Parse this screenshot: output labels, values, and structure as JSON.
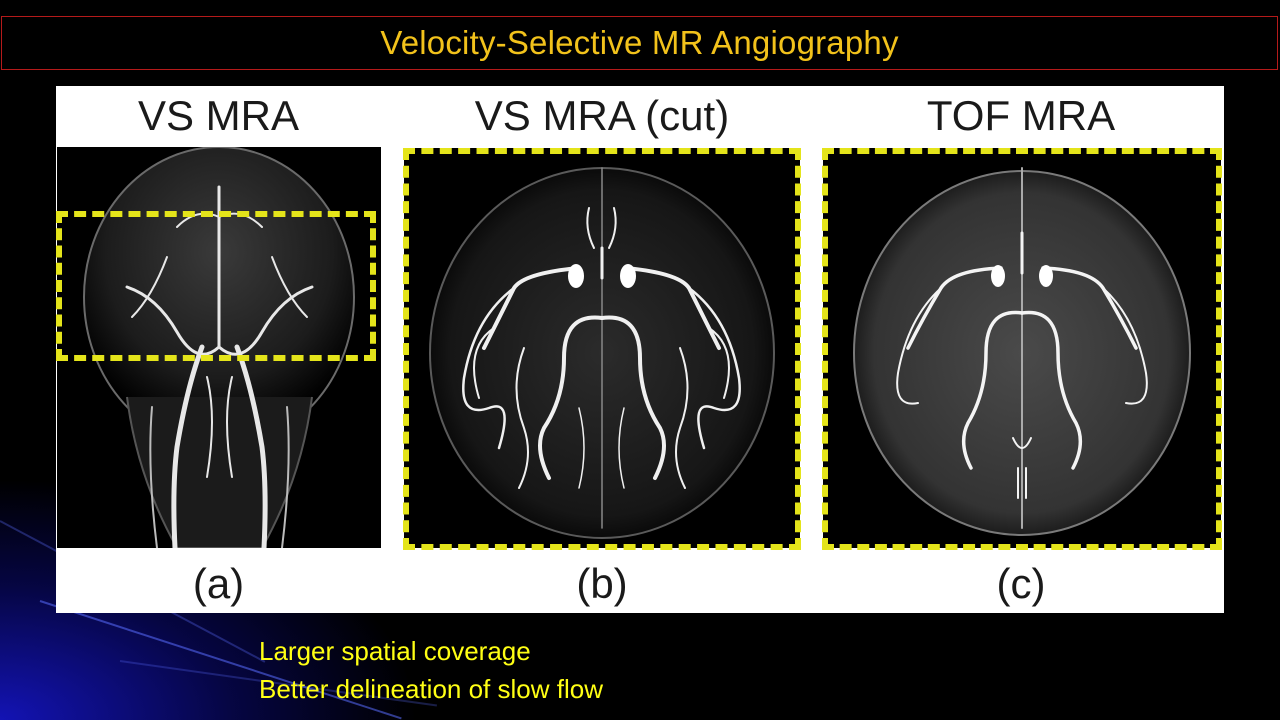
{
  "slide": {
    "title": "Velocity-Selective MR Angiography"
  },
  "figure": {
    "panels": [
      {
        "heading": "VS MRA",
        "label": "(a)"
      },
      {
        "heading": "VS MRA (cut)",
        "label": "(b)"
      },
      {
        "heading": "TOF MRA",
        "label": "(c)"
      }
    ]
  },
  "bullets": [
    "Larger spatial coverage",
    "Better delineation of slow flow"
  ],
  "colors": {
    "title": "#f2c21b",
    "title_border": "#b51a1a",
    "bullet_text": "#ffff14",
    "dashed_box": "#e4e41a",
    "background": "#000000",
    "accent_blue": "#1414be"
  }
}
